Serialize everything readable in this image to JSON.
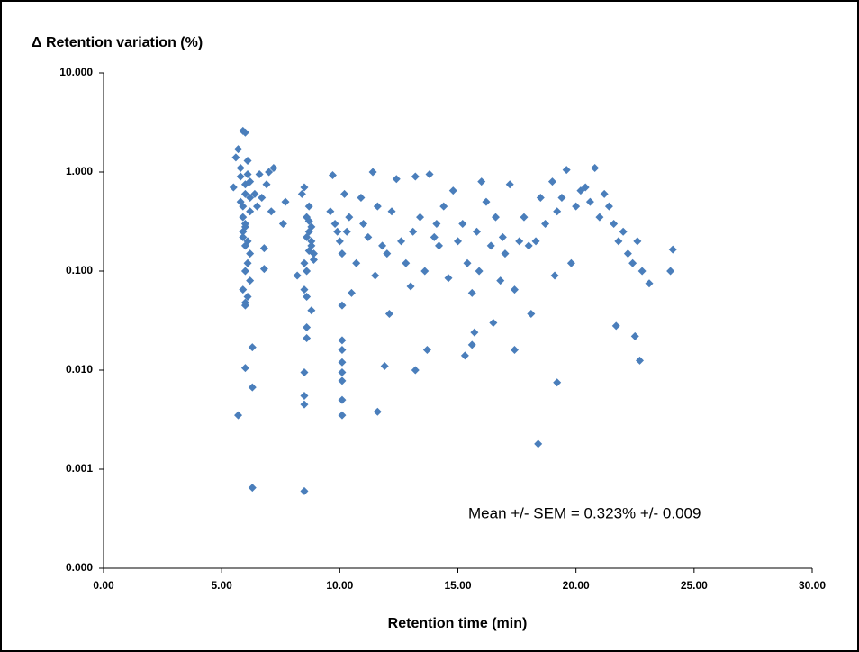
{
  "chart_data": {
    "type": "scatter",
    "title": "Δ Retention variation (%)",
    "x_label": "Retention time (min)",
    "annotation": "Mean +/- SEM = 0.323% +/- 0.009",
    "color": "#4a7ebb",
    "log_y": true,
    "grid": false,
    "xlim": [
      0,
      30
    ],
    "ylim": [
      0.0001,
      10
    ],
    "xticks": [
      {
        "value": 0,
        "label": "0.00"
      },
      {
        "value": 5,
        "label": "5.00"
      },
      {
        "value": 10,
        "label": "10.00"
      },
      {
        "value": 15,
        "label": "15.00"
      },
      {
        "value": 20,
        "label": "20.00"
      },
      {
        "value": 25,
        "label": "25.00"
      },
      {
        "value": 30,
        "label": "30.00"
      }
    ],
    "yticks": [
      {
        "value": 0.0001,
        "label": "0.000"
      },
      {
        "value": 0.001,
        "label": "0.001"
      },
      {
        "value": 0.01,
        "label": "0.010"
      },
      {
        "value": 0.1,
        "label": "0.100"
      },
      {
        "value": 1,
        "label": "1.000"
      },
      {
        "value": 10,
        "label": "10.000"
      }
    ],
    "x": [
      5.5,
      5.6,
      5.7,
      5.8,
      5.9,
      6.0,
      6.1,
      6.2,
      5.9,
      6.0,
      5.9,
      6.0,
      6.1,
      6.2,
      5.8,
      5.9,
      6.0,
      6.1,
      6.2,
      6.0,
      5.9,
      6.0,
      6.1,
      5.8,
      6.2,
      6.0,
      5.9,
      6.1,
      6.0,
      6.2,
      6.4,
      6.6,
      6.7,
      6.8,
      6.9,
      7.0,
      7.1,
      7.2,
      6.8,
      6.5,
      8.2,
      8.4,
      8.5,
      8.6,
      8.7,
      8.8,
      8.9,
      8.5,
      8.6,
      8.7,
      8.8,
      8.5,
      8.6,
      8.7,
      8.8,
      8.9,
      8.6,
      8.7,
      7.7,
      7.6,
      9.6,
      9.7,
      9.8,
      10.0,
      10.1,
      10.2,
      10.3,
      10.5,
      10.7,
      10.9,
      11.0,
      11.2,
      11.4,
      11.5,
      11.6,
      11.8,
      12.0,
      12.2,
      10.4,
      9.9,
      12.4,
      12.6,
      12.8,
      13.0,
      13.2,
      13.4,
      13.6,
      13.8,
      14.0,
      14.2,
      14.4,
      14.6,
      14.8,
      15.0,
      15.2,
      15.4,
      15.6,
      15.8,
      16.0,
      16.2,
      16.4,
      16.6,
      16.8,
      17.0,
      17.2,
      17.4,
      14.1,
      13.1,
      15.9,
      16.9,
      17.6,
      17.8,
      18.0,
      18.3,
      18.5,
      18.7,
      19.0,
      19.2,
      19.4,
      19.6,
      19.8,
      20.0,
      20.2,
      20.4,
      20.6,
      20.8,
      21.0,
      21.2,
      21.4,
      21.6,
      21.8,
      22.0,
      22.2,
      22.4,
      22.6,
      22.8,
      23.1,
      24.0,
      24.1,
      19.1,
      5.7,
      6.3,
      6.0,
      6.3,
      6.3,
      8.5,
      8.5,
      8.5,
      8.5,
      8.6,
      8.6,
      10.1,
      10.1,
      10.1,
      10.1,
      10.1,
      10.1,
      10.1,
      11.6,
      11.9,
      13.2,
      18.4,
      19.2,
      22.7,
      22.5,
      21.7,
      15.3,
      15.6,
      15.7,
      16.5,
      17.4,
      13.7,
      18.1,
      12.1,
      8.8,
      6.0,
      10.1
    ],
    "values": [
      0.7,
      1.4,
      1.7,
      0.9,
      2.6,
      2.5,
      1.3,
      0.8,
      0.35,
      0.6,
      0.25,
      0.18,
      0.12,
      0.08,
      0.5,
      0.45,
      0.3,
      0.2,
      0.15,
      0.1,
      0.065,
      0.048,
      0.055,
      1.1,
      0.4,
      0.28,
      0.22,
      0.95,
      0.75,
      0.55,
      0.6,
      0.95,
      0.55,
      0.105,
      0.75,
      1.0,
      0.4,
      1.1,
      0.17,
      0.45,
      0.09,
      0.6,
      0.7,
      0.35,
      0.25,
      0.2,
      0.15,
      0.12,
      0.1,
      0.32,
      0.18,
      0.065,
      0.055,
      0.45,
      0.28,
      0.13,
      0.22,
      0.16,
      0.5,
      0.3,
      0.4,
      0.93,
      0.3,
      0.2,
      0.15,
      0.6,
      0.25,
      0.06,
      0.12,
      0.55,
      0.3,
      0.22,
      1.0,
      0.09,
      0.45,
      0.18,
      0.15,
      0.4,
      0.35,
      0.25,
      0.85,
      0.2,
      0.12,
      0.07,
      0.9,
      0.35,
      0.1,
      0.95,
      0.22,
      0.18,
      0.45,
      0.085,
      0.65,
      0.2,
      0.3,
      0.12,
      0.06,
      0.25,
      0.8,
      0.5,
      0.18,
      0.35,
      0.08,
      0.15,
      0.75,
      0.065,
      0.3,
      0.25,
      0.1,
      0.22,
      0.2,
      0.35,
      0.18,
      0.2,
      0.55,
      0.3,
      0.8,
      0.4,
      0.55,
      1.05,
      0.12,
      0.45,
      0.65,
      0.7,
      0.5,
      1.1,
      0.35,
      0.6,
      0.45,
      0.3,
      0.2,
      0.25,
      0.15,
      0.12,
      0.2,
      0.1,
      0.075,
      0.1,
      0.165,
      0.09,
      0.0035,
      0.00065,
      0.0105,
      0.0067,
      0.017,
      0.0006,
      0.0095,
      0.0055,
      0.0045,
      0.021,
      0.027,
      0.0035,
      0.005,
      0.0078,
      0.0095,
      0.012,
      0.016,
      0.02,
      0.0038,
      0.011,
      0.01,
      0.0018,
      0.0075,
      0.0125,
      0.022,
      0.028,
      0.014,
      0.018,
      0.024,
      0.03,
      0.016,
      0.016,
      0.037,
      0.037,
      0.04,
      0.045,
      0.045
    ]
  }
}
